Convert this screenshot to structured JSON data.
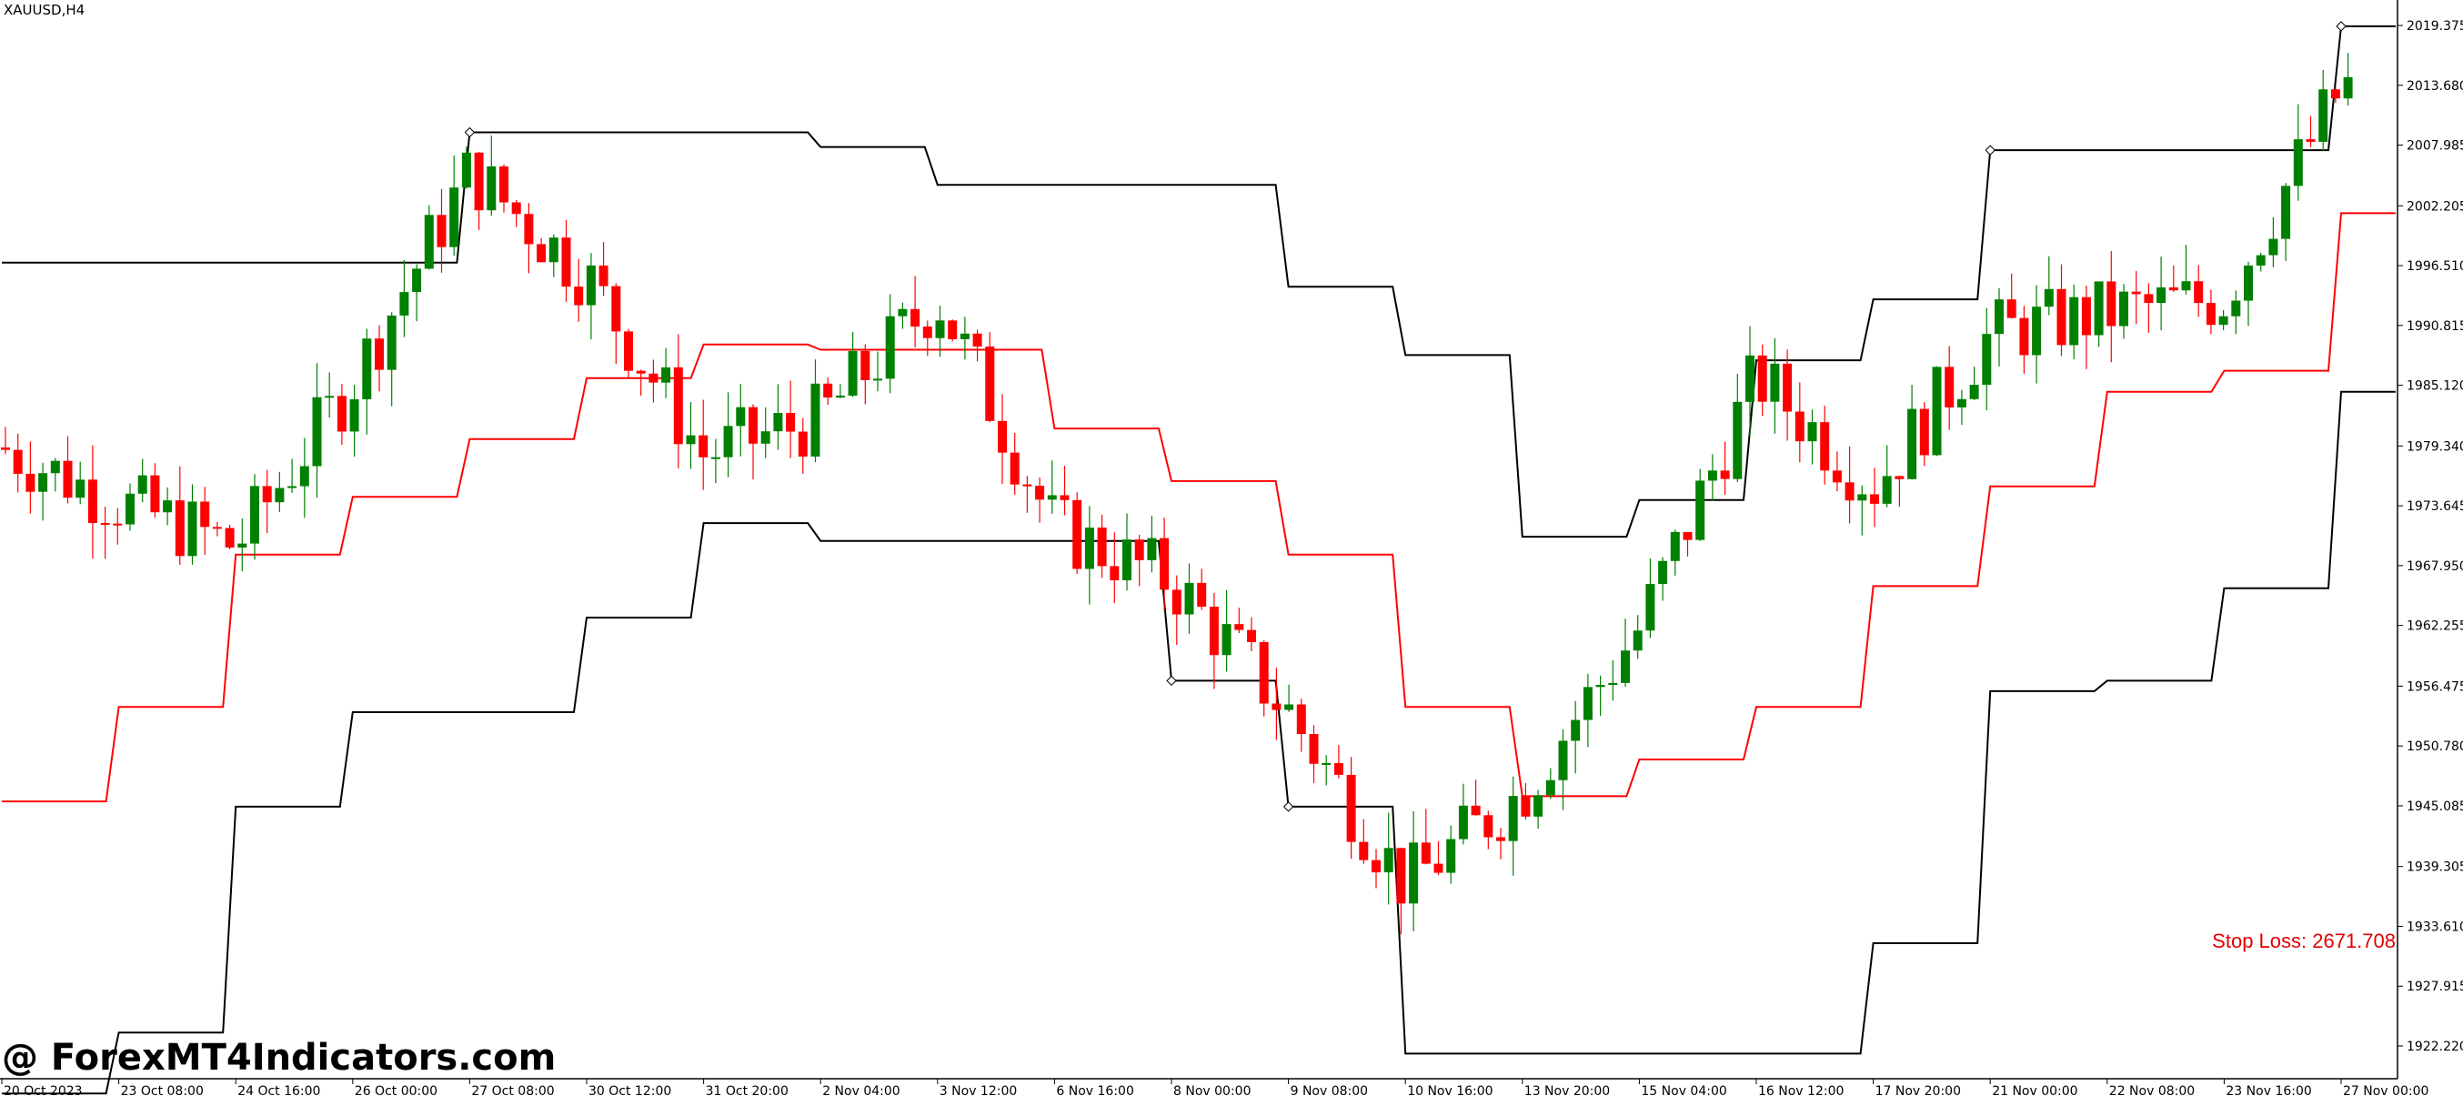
{
  "symbol_label": "XAUUSD,H4",
  "watermark": "@ ForexMT4Indicators.com",
  "stop_loss_label": "Stop Loss: 2671.708",
  "colors": {
    "bull": "#008000",
    "bear": "#ff0000",
    "upper_band": "#000000",
    "mid_line": "#ff0000",
    "lower_band": "#000000",
    "background": "#ffffff"
  },
  "chart_data": {
    "type": "candlestick",
    "title": "",
    "xlabel": "",
    "ylabel": "",
    "ylim": [
      1917.7,
      2022.2
    ],
    "y_ticks": [
      "2019.375",
      "2013.680",
      "2007.985",
      "2002.205",
      "1996.510",
      "1990.815",
      "1985.120",
      "1979.340",
      "1973.645",
      "1967.950",
      "1962.255",
      "1956.475",
      "1950.780",
      "1945.085",
      "1939.305",
      "1933.610",
      "1927.915",
      "1922.220"
    ],
    "x_ticks": [
      "20 Oct 2023",
      "23 Oct 08:00",
      "24 Oct 16:00",
      "26 Oct 00:00",
      "27 Oct 08:00",
      "30 Oct 12:00",
      "31 Oct 20:00",
      "2 Nov 04:00",
      "3 Nov 12:00",
      "6 Nov 16:00",
      "8 Nov 00:00",
      "9 Nov 08:00",
      "10 Nov 16:00",
      "13 Nov 20:00",
      "15 Nov 04:00",
      "16 Nov 12:00",
      "17 Nov 20:00",
      "21 Nov 00:00",
      "22 Nov 08:00",
      "23 Nov 16:00",
      "27 Nov 00:00"
    ],
    "close_path": [
      [
        "20 Oct 2023",
        1979.2
      ],
      [
        "23 Oct 08:00",
        1974.0
      ],
      [
        "24 Oct 16:00",
        1969.8
      ],
      [
        "26 Oct 00:00",
        1985.5
      ],
      [
        "27 Oct 08:00",
        2005.5
      ],
      [
        "30 Oct 12:00",
        1995.5
      ],
      [
        "31 Oct 20:00",
        1978.5
      ],
      [
        "2 Nov 04:00",
        1982.0
      ],
      [
        "3 Nov 12:00",
        1993.5
      ],
      [
        "6 Nov 16:00",
        1971.5
      ],
      [
        "8 Nov 00:00",
        1966.5
      ],
      [
        "9 Nov 08:00",
        1954.0
      ],
      [
        "10 Nov 16:00",
        1937.5
      ],
      [
        "13 Nov 20:00",
        1946.5
      ],
      [
        "15 Nov 04:00",
        1962.0
      ],
      [
        "16 Nov 12:00",
        1986.0
      ],
      [
        "17 Nov 20:00",
        1975.5
      ],
      [
        "21 Nov 00:00",
        1990.0
      ],
      [
        "22 Nov 08:00",
        1992.0
      ],
      [
        "23 Nov 16:00",
        1993.5
      ],
      [
        "27 Nov 00:00",
        2013.5
      ]
    ],
    "upper_band_steps": [
      [
        "20 Oct 2023",
        1996.8
      ],
      [
        "27 Oct 08:00",
        2009.2
      ],
      [
        "2 Nov 04:00",
        2007.8
      ],
      [
        "3 Nov 12:00",
        2004.2
      ],
      [
        "9 Nov 08:00",
        1994.5
      ],
      [
        "10 Nov 16:00",
        1988.0
      ],
      [
        "13 Nov 20:00",
        1970.7
      ],
      [
        "15 Nov 04:00",
        1974.2
      ],
      [
        "16 Nov 12:00",
        1987.5
      ],
      [
        "17 Nov 20:00",
        1993.3
      ],
      [
        "21 Nov 00:00",
        2007.5
      ],
      [
        "27 Nov 00:00",
        2019.3
      ]
    ],
    "mid_line_steps": [
      [
        "20 Oct 2023",
        1945.5
      ],
      [
        "23 Oct 08:00",
        1954.5
      ],
      [
        "24 Oct 16:00",
        1969.0
      ],
      [
        "26 Oct 00:00",
        1974.5
      ],
      [
        "27 Oct 08:00",
        1980.0
      ],
      [
        "30 Oct 12:00",
        1985.8
      ],
      [
        "31 Oct 20:00",
        1989.0
      ],
      [
        "2 Nov 04:00",
        1988.5
      ],
      [
        "6 Nov 16:00",
        1981.0
      ],
      [
        "8 Nov 00:00",
        1976.0
      ],
      [
        "9 Nov 08:00",
        1969.0
      ],
      [
        "10 Nov 16:00",
        1954.5
      ],
      [
        "13 Nov 20:00",
        1946.0
      ],
      [
        "15 Nov 04:00",
        1949.5
      ],
      [
        "16 Nov 12:00",
        1954.5
      ],
      [
        "17 Nov 20:00",
        1966.0
      ],
      [
        "21 Nov 00:00",
        1975.5
      ],
      [
        "22 Nov 08:00",
        1984.5
      ],
      [
        "23 Nov 16:00",
        1986.5
      ],
      [
        "27 Nov 00:00",
        2001.5
      ]
    ],
    "lower_band_steps": [
      [
        "20 Oct 2023",
        1917.7
      ],
      [
        "23 Oct 08:00",
        1923.5
      ],
      [
        "24 Oct 16:00",
        1945.0
      ],
      [
        "26 Oct 00:00",
        1954.0
      ],
      [
        "27 Oct 08:00",
        1954.0
      ],
      [
        "30 Oct 12:00",
        1963.0
      ],
      [
        "31 Oct 20:00",
        1972.0
      ],
      [
        "2 Nov 04:00",
        1970.3
      ],
      [
        "6 Nov 16:00",
        1970.3
      ],
      [
        "8 Nov 00:00",
        1957.0
      ],
      [
        "9 Nov 08:00",
        1945.0
      ],
      [
        "10 Nov 16:00",
        1921.5
      ],
      [
        "16 Nov 12:00",
        1921.5
      ],
      [
        "17 Nov 20:00",
        1932.0
      ],
      [
        "21 Nov 00:00",
        1956.0
      ],
      [
        "22 Nov 08:00",
        1957.0
      ],
      [
        "23 Nov 16:00",
        1965.8
      ],
      [
        "27 Nov 00:00",
        1984.5
      ]
    ]
  }
}
